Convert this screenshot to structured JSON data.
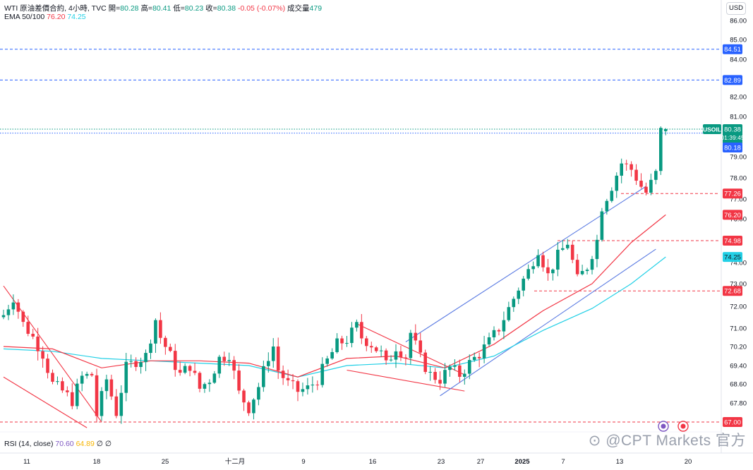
{
  "header": {
    "symbol_line": "WTI 原油差價合約, 4小時, TVC",
    "open_label": "開=",
    "open": "80.28",
    "high_label": "高=",
    "high": "80.41",
    "low_label": "低=",
    "low": "80.23",
    "close_label": "收=",
    "close": "80.38",
    "change": "-0.05 (-0.07%)",
    "volume_label": "成交量",
    "volume": "479",
    "ema_label": "EMA 50/100",
    "ema50": "76.20",
    "ema100": "74.25",
    "rsi_label": "RSI (14, close)",
    "rsi": "70.60",
    "rsi_ma": "64.89",
    "rsi_extra1": "∅",
    "rsi_extra2": "∅"
  },
  "currency_button": "USD",
  "watermark": "@CPT Markets 官方",
  "colors": {
    "up": "#089981",
    "down": "#f23645",
    "ema50": "#f23645",
    "ema100": "#22d0e6",
    "trendline_blue": "#5b7be2",
    "trendline_red": "#f23645",
    "level_blue": "#2962ff",
    "level_red": "#f23645"
  },
  "chart_data": {
    "type": "candlestick",
    "title": "WTI 原油差價合約, 4小時, TVC",
    "x_tick_labels": [
      "11",
      "18",
      "25",
      "十二月",
      "9",
      "16",
      "23",
      "27",
      "2025",
      "7",
      "13",
      "20"
    ],
    "y_tick_labels": [
      "86.00",
      "85.00",
      "84.00",
      "82.00",
      "81.00",
      "79.00",
      "78.00",
      "77.00",
      "76.00",
      "74.00",
      "73.00",
      "72.00",
      "71.00",
      "70.20",
      "69.40",
      "68.60",
      "67.80"
    ],
    "price_badges": [
      {
        "label": "84.51",
        "kind": "blue"
      },
      {
        "label": "82.89",
        "kind": "blue"
      },
      {
        "label": "80.38",
        "kind": "current",
        "symbol": "USOIL",
        "countdown": "01:39:45"
      },
      {
        "label": "80.18",
        "kind": "blue"
      },
      {
        "label": "77.26",
        "kind": "red"
      },
      {
        "label": "76.20",
        "kind": "ema50"
      },
      {
        "label": "74.98",
        "kind": "red"
      },
      {
        "label": "74.25",
        "kind": "ema100"
      },
      {
        "label": "72.68",
        "kind": "red"
      },
      {
        "label": "67.00",
        "kind": "red"
      }
    ],
    "horizontal_levels": [
      {
        "value": 84.51,
        "color": "blue",
        "style": "dashed"
      },
      {
        "value": 82.89,
        "color": "blue",
        "style": "dashed"
      },
      {
        "value": 80.18,
        "color": "blue",
        "style": "dotted"
      },
      {
        "value": 77.26,
        "color": "red",
        "style": "dashed"
      },
      {
        "value": 74.98,
        "color": "red",
        "style": "dashed"
      },
      {
        "value": 72.68,
        "color": "red",
        "style": "dashed"
      },
      {
        "value": 67.0,
        "color": "red",
        "style": "dashed"
      }
    ],
    "price_path": [
      [
        0,
        71.6
      ],
      [
        2,
        72.4
      ],
      [
        4,
        71.2
      ],
      [
        6,
        70.6
      ],
      [
        8,
        69.9
      ],
      [
        10,
        68.6
      ],
      [
        12,
        68.3
      ],
      [
        14,
        67.9
      ],
      [
        16,
        68.9
      ],
      [
        18,
        69.0
      ],
      [
        19,
        67.3
      ],
      [
        21,
        68.8
      ],
      [
        23,
        67.4
      ],
      [
        25,
        69.3
      ],
      [
        27,
        69.6
      ],
      [
        29,
        69.8
      ],
      [
        31,
        71.4
      ],
      [
        32,
        70.6
      ],
      [
        34,
        69.8
      ],
      [
        36,
        69.0
      ],
      [
        38,
        69.4
      ],
      [
        40,
        68.4
      ],
      [
        42,
        68.8
      ],
      [
        44,
        69.7
      ],
      [
        46,
        69.9
      ],
      [
        48,
        68.2
      ],
      [
        50,
        67.6
      ],
      [
        52,
        68.5
      ],
      [
        54,
        69.8
      ],
      [
        55,
        70.2
      ],
      [
        56,
        69.2
      ],
      [
        58,
        68.6
      ],
      [
        60,
        68.3
      ],
      [
        62,
        68.4
      ],
      [
        64,
        68.8
      ],
      [
        66,
        69.6
      ],
      [
        68,
        70.3
      ],
      [
        70,
        70.5
      ],
      [
        72,
        71.1
      ],
      [
        73,
        70.6
      ],
      [
        75,
        70.3
      ],
      [
        77,
        69.9
      ],
      [
        78,
        69.4
      ],
      [
        80,
        70.2
      ],
      [
        82,
        69.8
      ],
      [
        83,
        70.8
      ],
      [
        85,
        69.7
      ],
      [
        87,
        69.0
      ],
      [
        89,
        68.8
      ],
      [
        91,
        69.3
      ],
      [
        93,
        69.0
      ],
      [
        95,
        69.5
      ],
      [
        97,
        69.9
      ],
      [
        99,
        70.4
      ],
      [
        101,
        71.0
      ],
      [
        103,
        71.9
      ],
      [
        105,
        72.8
      ],
      [
        107,
        73.6
      ],
      [
        109,
        74.6
      ],
      [
        111,
        73.4
      ],
      [
        113,
        74.3
      ],
      [
        115,
        74.9
      ],
      [
        117,
        73.2
      ],
      [
        119,
        73.8
      ],
      [
        121,
        75.0
      ],
      [
        122,
        76.6
      ],
      [
        124,
        77.6
      ],
      [
        126,
        78.7
      ],
      [
        128,
        78.4
      ],
      [
        130,
        77.6
      ],
      [
        131,
        77.3
      ],
      [
        133,
        78.2
      ],
      [
        134,
        80.3
      ],
      [
        135,
        80.38
      ]
    ],
    "ema50_path": [
      [
        0,
        70.2
      ],
      [
        10,
        70.1
      ],
      [
        20,
        69.3
      ],
      [
        30,
        69.6
      ],
      [
        40,
        69.6
      ],
      [
        50,
        69.5
      ],
      [
        60,
        68.9
      ],
      [
        70,
        69.7
      ],
      [
        80,
        69.8
      ],
      [
        90,
        69.3
      ],
      [
        100,
        70.3
      ],
      [
        110,
        71.8
      ],
      [
        120,
        73.0
      ],
      [
        128,
        74.9
      ],
      [
        135,
        76.2
      ]
    ],
    "ema100_path": [
      [
        0,
        70.1
      ],
      [
        10,
        70.0
      ],
      [
        20,
        69.7
      ],
      [
        30,
        69.6
      ],
      [
        40,
        69.5
      ],
      [
        50,
        69.4
      ],
      [
        60,
        68.9
      ],
      [
        70,
        69.4
      ],
      [
        80,
        69.5
      ],
      [
        90,
        69.3
      ],
      [
        100,
        69.8
      ],
      [
        110,
        70.9
      ],
      [
        120,
        71.9
      ],
      [
        128,
        73.0
      ],
      [
        135,
        74.25
      ]
    ],
    "trendlines": [
      {
        "color": "red",
        "from": [
          0,
          72.9
        ],
        "to": [
          20,
          67.0
        ]
      },
      {
        "color": "red",
        "from": [
          0,
          68.9
        ],
        "to": [
          17,
          66.7
        ]
      },
      {
        "color": "red",
        "from": [
          72,
          71.2
        ],
        "to": [
          94,
          69.0
        ]
      },
      {
        "color": "red",
        "from": [
          70,
          69.2
        ],
        "to": [
          94,
          68.3
        ]
      },
      {
        "color": "blue",
        "from": [
          89,
          68.1
        ],
        "to": [
          133,
          74.6
        ]
      },
      {
        "color": "blue",
        "from": [
          82,
          70.4
        ],
        "to": [
          131,
          77.6
        ]
      }
    ],
    "grid": true,
    "legend": "top-left"
  }
}
